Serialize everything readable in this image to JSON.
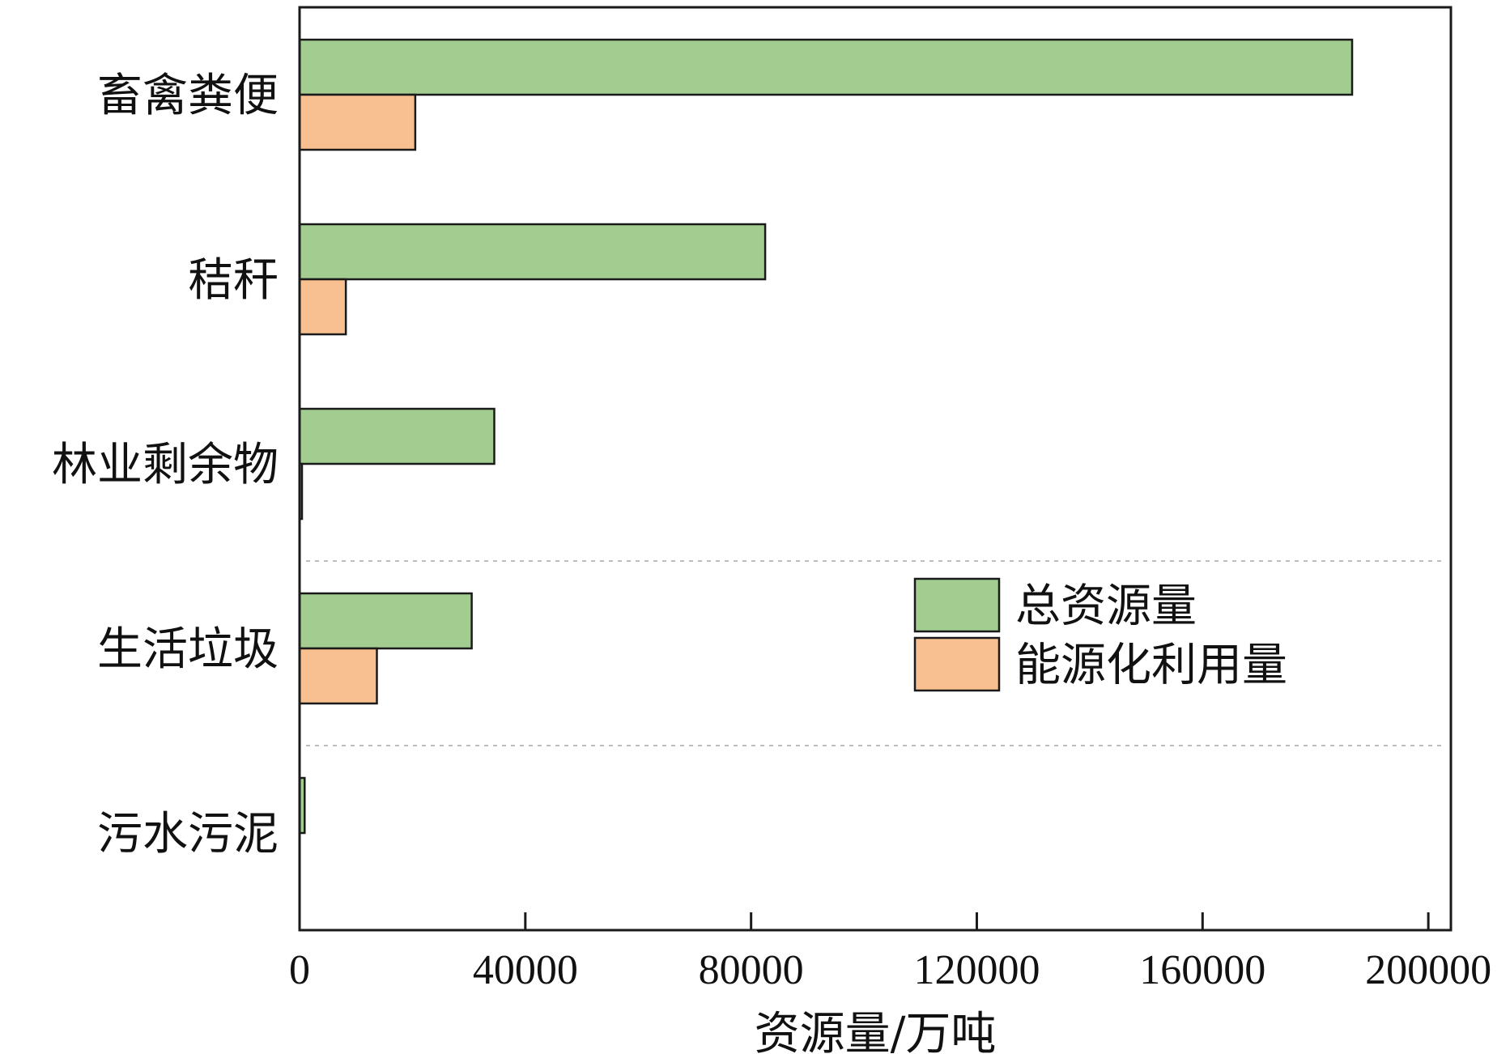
{
  "chart_data": {
    "type": "bar",
    "orientation": "horizontal",
    "categories": [
      "畜禽粪便",
      "秸秆",
      "林业剩余物",
      "生活垃圾",
      "污水污泥"
    ],
    "series": [
      {
        "name": "总资源量",
        "color": "#a3cd90",
        "values": [
          186500,
          82500,
          34500,
          30500,
          900
        ]
      },
      {
        "name": "能源化利用量",
        "color": "#f8bf90",
        "values": [
          20500,
          8200,
          400,
          13700,
          0
        ]
      }
    ],
    "xlabel": "资源量/万吨",
    "ylabel": "",
    "xlim": [
      0,
      204000
    ],
    "x_ticks": [
      0,
      40000,
      80000,
      120000,
      160000,
      200000
    ],
    "x_tick_labels": [
      "0",
      "40000",
      "80000",
      "120000",
      "160000",
      "200000"
    ],
    "legend_position": "center-right",
    "grid": "dotted horizontal separators between lower categories",
    "bar_edge_color": "#1a1a1a"
  }
}
